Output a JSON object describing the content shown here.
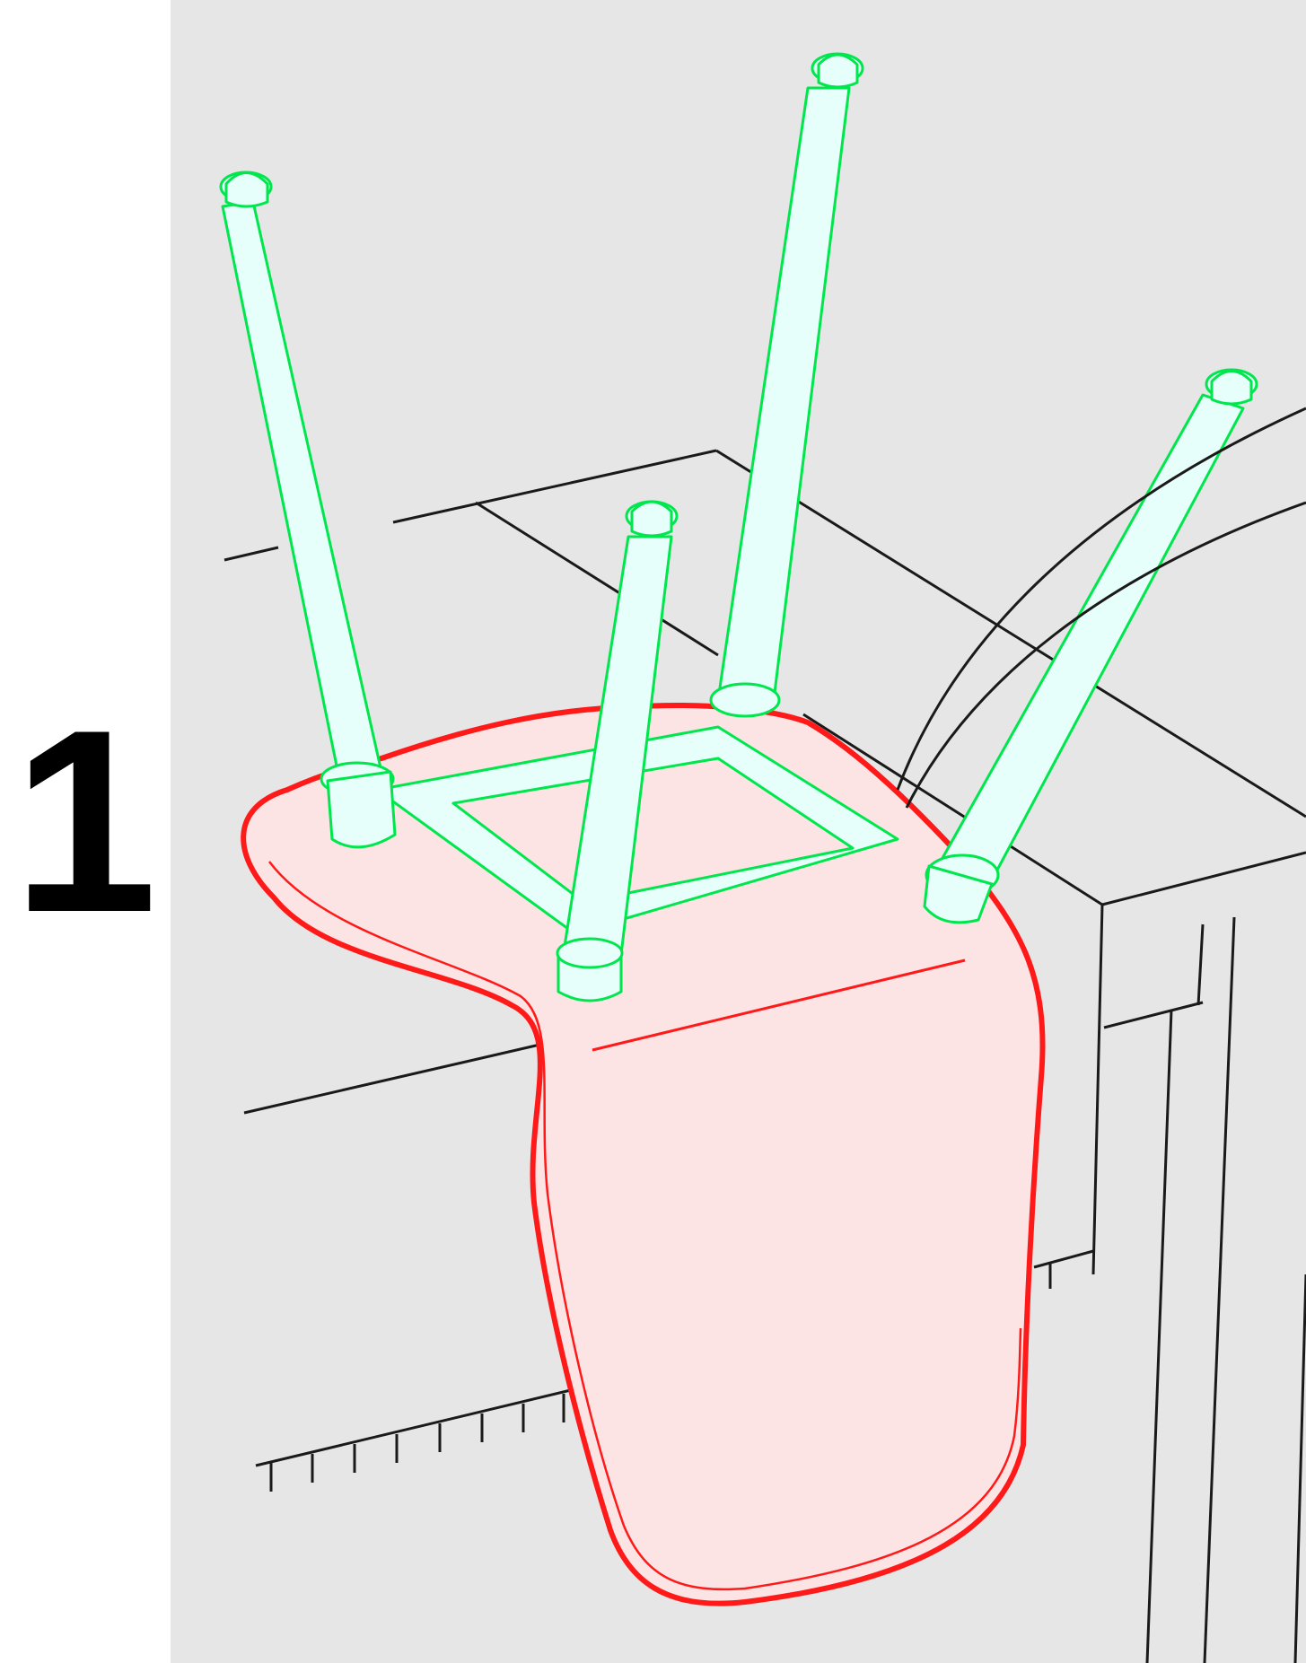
{
  "step": {
    "number": "1"
  },
  "colors": {
    "panel_background": "#e6e6e6",
    "page_background": "#ffffff",
    "line_art": "#1a1a1a",
    "chair_frame_stroke": "#00e64d",
    "chair_frame_fill": "#e6fffa",
    "seat_shell_stroke": "#ff1a1a",
    "seat_shell_fill": "#fce4e4"
  },
  "icons": {
    "seat_shell": "chair-seat-shell-icon",
    "leg_frame": "chair-leg-frame-icon",
    "table": "table-icon",
    "rug": "rug-fringe-icon"
  }
}
